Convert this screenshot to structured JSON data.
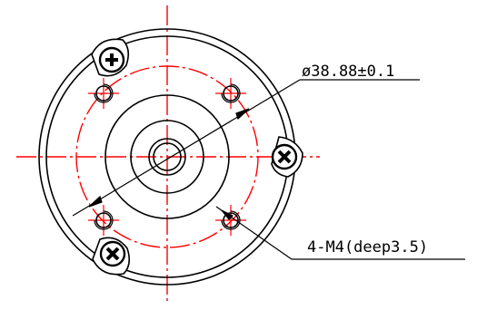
{
  "drawing": {
    "annotations": {
      "diameter": "ø38.88±0.1",
      "threaded_holes": "4-M4(deep3.5)"
    },
    "colors": {
      "outline": "#000000",
      "centerline": "#ff0000",
      "background": "#ffffff"
    },
    "features": {
      "mounting_holes": {
        "count": 4,
        "thread": "M4",
        "depth": 3.5
      },
      "cross_screws": {
        "count": 3,
        "icon": "phillips-screw-icon"
      }
    }
  }
}
